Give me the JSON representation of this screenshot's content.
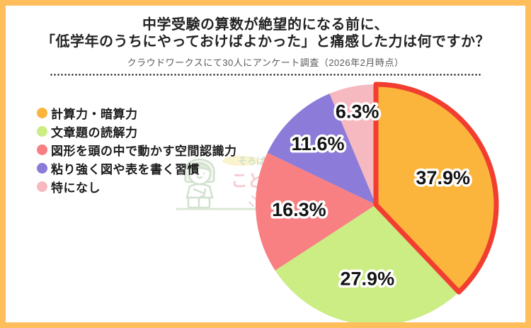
{
  "frame": {
    "border_color": "#FFBE5C",
    "background": "#FFFFFF"
  },
  "header": {
    "title_line1": "中学受験の算数が絶望的になる前に、",
    "title_line2": "「低学年のうちにやっておけばよかった」と痛感した力は何ですか？",
    "subtitle": "クラウドワークスにて30人にアンケート調査（2026年2月時点）"
  },
  "watermark": {
    "text_top": "そろばん",
    "text_bottom": "こども",
    "text_top_color": "#C9DCC0",
    "text_bottom_color": "#F4C3CB",
    "line_color": "#D4E3D0"
  },
  "chart_data": {
    "type": "pie",
    "title": "中学受験の算数が絶望的になる前に、「低学年のうちにやっておけばよかった」と痛感した力は何ですか？",
    "subtitle": "クラウドワークスにて30人にアンケート調査（2026年2月時点）",
    "categories": [
      "計算力・暗算力",
      "文章題の読解力",
      "図形を頭の中で動かす空間認識力",
      "粘り強く図や表を書く習慣",
      "特になし"
    ],
    "values": [
      37.9,
      27.9,
      16.3,
      11.6,
      6.3
    ],
    "value_labels": [
      "37.9%",
      "27.9%",
      "16.3%",
      "11.6%",
      "6.3%"
    ],
    "colors": [
      "#FBB43C",
      "#CCEC84",
      "#F87F82",
      "#8C7BD8",
      "#F7B9C0"
    ],
    "start_angle_deg": 0,
    "direction": "clockwise",
    "highlight": {
      "index": 0,
      "stroke": "#F23E30",
      "stroke_width": 7
    },
    "legend_position": "left",
    "label_color": "#141414",
    "label_outline": "#FFFFFF"
  }
}
